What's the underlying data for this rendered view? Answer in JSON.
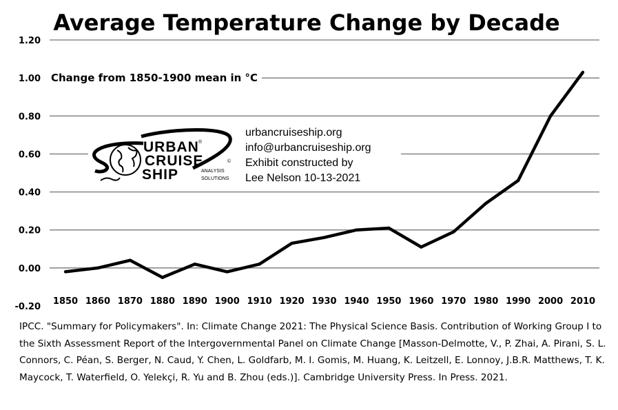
{
  "chart_data": {
    "type": "line",
    "title": "Average Temperature Change by Decade",
    "ylabel": "Change from 1850-1900 mean in °C",
    "xlabel": "",
    "x": [
      1850,
      1860,
      1870,
      1880,
      1890,
      1900,
      1910,
      1920,
      1930,
      1940,
      1950,
      1960,
      1970,
      1980,
      1990,
      2000,
      2010
    ],
    "series": [
      {
        "values": [
          -0.02,
          0.0,
          0.04,
          -0.05,
          0.02,
          -0.02,
          0.02,
          0.13,
          0.16,
          0.2,
          0.21,
          0.11,
          0.19,
          0.34,
          0.46,
          0.8,
          1.03
        ]
      }
    ],
    "x_tick_labels": [
      "1850",
      "1860",
      "1870",
      "1880",
      "1890",
      "1900",
      "1910",
      "1920",
      "1930",
      "1940",
      "1950",
      "1960",
      "1970",
      "1980",
      "1990",
      "2000",
      "2010"
    ],
    "ylim": [
      -0.2,
      1.2
    ],
    "y_tick_labels": [
      "1.20",
      "1.00",
      "0.80",
      "0.60",
      "0.40",
      "0.20",
      "0.00",
      "-0.20"
    ],
    "grid": "horizontal",
    "line_color": "#000000",
    "grid_color": "#8c8c8c"
  },
  "logo": {
    "words": [
      "URBAN",
      "CRUISE",
      "SHIP"
    ],
    "registered": "®",
    "copyright": "©",
    "tagline_1": "ANALYSIS",
    "tagline_2": "SOLUTIONS",
    "icon": "globe-swirl-icon"
  },
  "credits": {
    "lines": [
      "urbancruiseship.org",
      "info@urbancruiseship.org",
      "Exhibit constructed by",
      "Lee Nelson 10-13-2021"
    ]
  },
  "citation": "IPCC. \"Summary for Policymakers\". In: Climate Change 2021: The Physical Science Basis. Contribution of Working Group I to the Sixth Assessment Report of the Intergovernmental Panel on Climate Change [Masson-Delmotte, V., P. Zhai, A. Pirani, S. L. Connors, C. Péan, S. Berger, N. Caud, Y. Chen, L. Goldfarb, M. I. Gomis, M. Huang, K. Leitzell, E. Lonnoy, J.B.R. Matthews, T. K. Maycock, T. Waterfield, O. Yelekçi, R. Yu and B. Zhou (eds.)]. Cambridge University Press. In Press. 2021."
}
